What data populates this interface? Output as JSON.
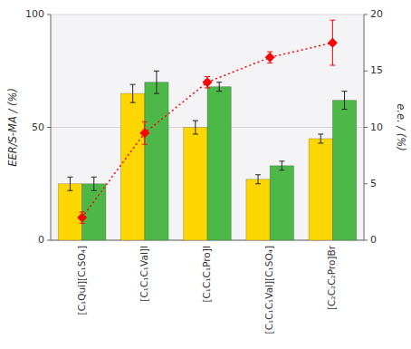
{
  "chart_data": {
    "type": "bar",
    "categories": [
      "[C₁Qui][C₁SO₄]",
      "[C₁C₁C₁Val]I",
      "[C₁C₁C₁Pro]I",
      "[C₁C₁C₁Val][C₁SO₄]",
      "[C₂C₂C₂Pro]Br"
    ],
    "series": [
      {
        "color": "#FFD700",
        "values": [
          25,
          65,
          50,
          27,
          45
        ],
        "errors": [
          3,
          4,
          3,
          2,
          2
        ]
      },
      {
        "color": "#4DB848",
        "values": [
          25,
          70,
          68,
          33,
          62
        ],
        "errors": [
          3,
          5,
          2,
          2,
          4
        ]
      },
      {
        "type": "line",
        "axis": "y2",
        "color": "#FF0000",
        "marker": "diamond",
        "line_style": "dotted",
        "values": [
          2.0,
          9.5,
          14.0,
          16.2,
          17.5
        ],
        "errors": [
          0.5,
          1.0,
          0.5,
          0.5,
          2.0
        ]
      }
    ],
    "y_label": "EER/S-MA / (%)",
    "y2_label": "e.e. / (%)",
    "ylim": [
      0,
      100
    ],
    "yticks": [
      0,
      50,
      100
    ],
    "y2lim": [
      0,
      20
    ],
    "y2ticks": [
      0,
      5,
      10,
      15,
      20
    ],
    "grid": true
  }
}
